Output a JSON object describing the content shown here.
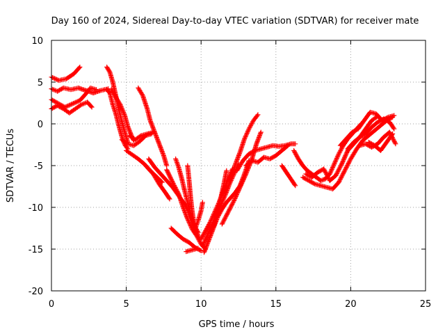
{
  "chart_data": {
    "type": "scatter",
    "title": "Day 160 of 2024, Sidereal Day-to-day VTEC variation (SDTVAR) for receiver mate",
    "xlabel": "GPS time / hours",
    "ylabel": "SDTVAR / TECUs",
    "xlim": [
      0,
      25
    ],
    "ylim": [
      -20,
      10
    ],
    "xticks": [
      0,
      5,
      10,
      15,
      20,
      25
    ],
    "yticks": [
      -20,
      -15,
      -10,
      -5,
      0,
      5,
      10
    ],
    "xtick_labels": [
      "0",
      "5",
      "10",
      "15",
      "20",
      "25"
    ],
    "ytick_labels": [
      "-20",
      "-15",
      "-10",
      "-5",
      "0",
      "5",
      "10"
    ],
    "grid": true,
    "marker": "+",
    "color": "#ff0000",
    "series": [
      {
        "points": [
          [
            0.0,
            5.6
          ],
          [
            0.5,
            5.2
          ],
          [
            1.0,
            5.4
          ],
          [
            1.5,
            6.0
          ],
          [
            1.9,
            6.8
          ]
        ]
      },
      {
        "points": [
          [
            0.0,
            4.2
          ],
          [
            0.4,
            3.9
          ],
          [
            0.8,
            4.3
          ],
          [
            1.3,
            4.1
          ],
          [
            1.8,
            4.3
          ],
          [
            2.3,
            4.0
          ],
          [
            2.8,
            3.7
          ],
          [
            3.3,
            4.0
          ],
          [
            3.8,
            4.2
          ]
        ]
      },
      {
        "points": [
          [
            0.0,
            2.9
          ],
          [
            0.4,
            2.5
          ],
          [
            0.9,
            2.0
          ],
          [
            1.4,
            2.4
          ],
          [
            1.9,
            2.8
          ],
          [
            2.3,
            3.6
          ],
          [
            2.6,
            4.3
          ],
          [
            3.0,
            4.1
          ]
        ]
      },
      {
        "points": [
          [
            0.0,
            1.8
          ],
          [
            0.4,
            2.2
          ],
          [
            0.8,
            1.8
          ],
          [
            1.2,
            1.3
          ],
          [
            1.6,
            1.8
          ],
          [
            2.0,
            2.3
          ],
          [
            2.4,
            2.6
          ],
          [
            2.7,
            2.0
          ]
        ]
      },
      {
        "points": [
          [
            3.7,
            4.1
          ],
          [
            3.9,
            3.7
          ],
          [
            4.1,
            2.3
          ],
          [
            4.3,
            1.2
          ],
          [
            4.5,
            -0.2
          ],
          [
            4.7,
            -1.5
          ],
          [
            4.9,
            -2.5
          ],
          [
            5.1,
            -3.0
          ]
        ]
      },
      {
        "points": [
          [
            3.7,
            6.8
          ],
          [
            3.9,
            6.2
          ],
          [
            4.1,
            5.0
          ],
          [
            4.3,
            3.4
          ],
          [
            4.5,
            1.7
          ],
          [
            4.7,
            0.3
          ],
          [
            4.9,
            -1.0
          ],
          [
            5.1,
            -2.2
          ]
        ]
      },
      {
        "points": [
          [
            4.0,
            4.1
          ],
          [
            4.3,
            3.2
          ],
          [
            4.6,
            2.3
          ],
          [
            4.9,
            1.0
          ],
          [
            5.1,
            -0.3
          ],
          [
            5.3,
            -1.2
          ],
          [
            5.5,
            -2.0
          ]
        ]
      },
      {
        "points": [
          [
            4.7,
            -1.9
          ],
          [
            5.1,
            -2.4
          ],
          [
            5.5,
            -2.6
          ],
          [
            5.9,
            -2.1
          ],
          [
            6.3,
            -1.4
          ],
          [
            6.7,
            -1.2
          ]
        ]
      },
      {
        "points": [
          [
            5.2,
            -1.4
          ],
          [
            5.6,
            -1.9
          ],
          [
            6.0,
            -1.4
          ],
          [
            6.4,
            -1.2
          ],
          [
            6.8,
            -1.0
          ]
        ]
      },
      {
        "points": [
          [
            5.0,
            -3.2
          ],
          [
            5.4,
            -3.7
          ],
          [
            5.8,
            -4.2
          ],
          [
            6.2,
            -4.8
          ],
          [
            6.6,
            -5.6
          ],
          [
            7.0,
            -6.3
          ],
          [
            7.4,
            -7.0
          ]
        ]
      },
      {
        "points": [
          [
            5.8,
            4.3
          ],
          [
            6.1,
            3.4
          ],
          [
            6.4,
            1.8
          ],
          [
            6.6,
            0.4
          ],
          [
            6.9,
            -1.0
          ],
          [
            7.2,
            -2.4
          ],
          [
            7.5,
            -3.8
          ],
          [
            7.7,
            -5.0
          ]
        ]
      },
      {
        "points": [
          [
            6.3,
            -5.0
          ],
          [
            6.8,
            -6.0
          ],
          [
            7.2,
            -7.2
          ],
          [
            7.6,
            -8.2
          ],
          [
            7.9,
            -9.0
          ]
        ]
      },
      {
        "points": [
          [
            6.5,
            -4.2
          ],
          [
            6.9,
            -5.2
          ],
          [
            7.3,
            -6.0
          ],
          [
            7.7,
            -6.8
          ],
          [
            8.1,
            -7.6
          ],
          [
            8.5,
            -8.6
          ],
          [
            8.9,
            -9.6
          ],
          [
            9.3,
            -11.0
          ],
          [
            9.6,
            -12.5
          ],
          [
            9.9,
            -13.8
          ]
        ]
      },
      {
        "points": [
          [
            7.7,
            -5.5
          ],
          [
            8.1,
            -7.0
          ],
          [
            8.5,
            -8.4
          ],
          [
            8.8,
            -10.0
          ],
          [
            9.1,
            -11.4
          ],
          [
            9.4,
            -12.6
          ],
          [
            9.7,
            -13.4
          ],
          [
            10.0,
            -14.4
          ],
          [
            10.3,
            -15.0
          ]
        ]
      },
      {
        "points": [
          [
            8.3,
            -4.2
          ],
          [
            8.5,
            -5.2
          ],
          [
            8.7,
            -6.5
          ],
          [
            8.9,
            -8.0
          ],
          [
            9.1,
            -9.4
          ],
          [
            9.3,
            -10.8
          ],
          [
            9.5,
            -12.0
          ],
          [
            9.8,
            -13.0
          ]
        ]
      },
      {
        "points": [
          [
            8.0,
            -12.5
          ],
          [
            8.4,
            -13.2
          ],
          [
            8.8,
            -13.8
          ],
          [
            9.2,
            -14.2
          ],
          [
            9.6,
            -14.8
          ],
          [
            10.0,
            -15.2
          ]
        ]
      },
      {
        "points": [
          [
            9.0,
            -15.3
          ],
          [
            9.4,
            -15.1
          ],
          [
            9.8,
            -14.9
          ]
        ]
      },
      {
        "points": [
          [
            9.1,
            -5.0
          ],
          [
            9.2,
            -6.8
          ],
          [
            9.3,
            -8.8
          ],
          [
            9.4,
            -10.4
          ],
          [
            9.5,
            -11.6
          ]
        ]
      },
      {
        "points": [
          [
            9.6,
            -12.6
          ],
          [
            9.8,
            -11.6
          ],
          [
            10.0,
            -10.4
          ],
          [
            10.1,
            -9.4
          ]
        ]
      },
      {
        "points": [
          [
            10.0,
            -13.8
          ],
          [
            10.3,
            -12.8
          ],
          [
            10.6,
            -11.8
          ],
          [
            10.9,
            -10.6
          ],
          [
            11.2,
            -9.4
          ],
          [
            11.5,
            -8.0
          ],
          [
            11.8,
            -6.6
          ],
          [
            12.1,
            -5.4
          ]
        ]
      },
      {
        "points": [
          [
            10.1,
            -14.6
          ],
          [
            10.4,
            -13.4
          ],
          [
            10.7,
            -12.2
          ],
          [
            11.0,
            -11.0
          ],
          [
            11.3,
            -9.8
          ],
          [
            11.6,
            -8.6
          ],
          [
            11.9,
            -7.2
          ],
          [
            12.2,
            -6.0
          ],
          [
            12.5,
            -4.8
          ]
        ]
      },
      {
        "points": [
          [
            10.2,
            -15.4
          ],
          [
            10.5,
            -14.0
          ],
          [
            10.8,
            -12.6
          ],
          [
            11.1,
            -11.2
          ],
          [
            11.4,
            -10.2
          ],
          [
            11.7,
            -9.4
          ],
          [
            12.0,
            -8.8
          ],
          [
            12.3,
            -8.2
          ],
          [
            12.6,
            -7.4
          ],
          [
            12.9,
            -6.0
          ],
          [
            13.2,
            -4.4
          ]
        ]
      },
      {
        "points": [
          [
            10.6,
            -13.0
          ],
          [
            10.9,
            -12.0
          ],
          [
            11.1,
            -10.4
          ],
          [
            11.3,
            -9.0
          ],
          [
            11.5,
            -7.4
          ],
          [
            11.7,
            -5.6
          ]
        ]
      },
      {
        "points": [
          [
            11.4,
            -12.0
          ],
          [
            11.8,
            -10.6
          ],
          [
            12.2,
            -9.2
          ],
          [
            12.6,
            -7.6
          ],
          [
            13.0,
            -6.0
          ],
          [
            13.4,
            -4.2
          ],
          [
            13.7,
            -2.4
          ],
          [
            14.0,
            -1.0
          ]
        ]
      },
      {
        "points": [
          [
            11.9,
            -6.8
          ],
          [
            12.3,
            -4.8
          ],
          [
            12.6,
            -3.4
          ],
          [
            12.9,
            -1.8
          ],
          [
            13.2,
            -0.6
          ],
          [
            13.5,
            0.4
          ],
          [
            13.8,
            1.1
          ]
        ]
      },
      {
        "points": [
          [
            12.4,
            -5.6
          ],
          [
            12.8,
            -4.4
          ],
          [
            13.2,
            -3.6
          ],
          [
            13.6,
            -3.2
          ],
          [
            14.0,
            -3.0
          ],
          [
            14.4,
            -2.8
          ],
          [
            14.8,
            -2.6
          ],
          [
            15.2,
            -2.7
          ],
          [
            15.6,
            -2.6
          ],
          [
            16.0,
            -2.4
          ],
          [
            16.3,
            -2.4
          ]
        ]
      },
      {
        "points": [
          [
            13.0,
            -5.0
          ],
          [
            13.4,
            -4.4
          ],
          [
            13.8,
            -4.6
          ],
          [
            14.2,
            -4.0
          ],
          [
            14.6,
            -4.2
          ],
          [
            15.0,
            -3.8
          ],
          [
            15.4,
            -3.2
          ],
          [
            15.8,
            -2.6
          ]
        ]
      },
      {
        "points": [
          [
            15.4,
            -5.0
          ],
          [
            15.7,
            -5.8
          ],
          [
            16.0,
            -6.6
          ],
          [
            16.3,
            -7.4
          ]
        ]
      },
      {
        "points": [
          [
            16.2,
            -3.2
          ],
          [
            16.5,
            -4.2
          ],
          [
            16.8,
            -5.0
          ],
          [
            17.1,
            -5.6
          ],
          [
            17.4,
            -6.0
          ],
          [
            17.7,
            -6.4
          ],
          [
            18.0,
            -6.8
          ],
          [
            18.3,
            -6.6
          ],
          [
            18.6,
            -6.0
          ],
          [
            18.9,
            -4.8
          ],
          [
            19.2,
            -3.6
          ],
          [
            19.5,
            -2.6
          ],
          [
            19.8,
            -1.8
          ],
          [
            20.1,
            -1.2
          ],
          [
            20.4,
            -0.6
          ],
          [
            20.7,
            0.0
          ]
        ]
      },
      {
        "points": [
          [
            17.0,
            -6.0
          ],
          [
            17.4,
            -6.4
          ],
          [
            17.8,
            -5.8
          ],
          [
            18.2,
            -5.4
          ],
          [
            18.6,
            -6.8
          ],
          [
            19.0,
            -6.2
          ],
          [
            19.4,
            -4.8
          ],
          [
            19.8,
            -3.2
          ],
          [
            20.2,
            -2.4
          ],
          [
            20.6,
            -1.6
          ],
          [
            21.0,
            -0.6
          ],
          [
            21.4,
            0.4
          ],
          [
            21.8,
            0.9
          ]
        ]
      },
      {
        "points": [
          [
            16.8,
            -6.4
          ],
          [
            17.2,
            -6.8
          ],
          [
            17.6,
            -7.2
          ],
          [
            18.0,
            -7.4
          ],
          [
            18.4,
            -7.6
          ],
          [
            18.8,
            -7.8
          ],
          [
            19.2,
            -7.0
          ],
          [
            19.6,
            -5.6
          ],
          [
            20.0,
            -4.2
          ],
          [
            20.4,
            -3.0
          ],
          [
            20.8,
            -2.0
          ],
          [
            21.2,
            -1.4
          ],
          [
            21.6,
            -0.8
          ],
          [
            22.0,
            -0.2
          ],
          [
            22.4,
            0.4
          ],
          [
            22.8,
            0.8
          ]
        ]
      },
      {
        "points": [
          [
            19.3,
            -2.6
          ],
          [
            19.7,
            -1.8
          ],
          [
            20.1,
            -1.0
          ],
          [
            20.5,
            -0.6
          ],
          [
            20.9,
            0.4
          ],
          [
            21.3,
            1.4
          ],
          [
            21.7,
            1.2
          ],
          [
            22.1,
            0.4
          ],
          [
            22.5,
            0.8
          ],
          [
            22.9,
            1.0
          ]
        ]
      },
      {
        "points": [
          [
            20.6,
            -2.6
          ],
          [
            21.0,
            -2.4
          ],
          [
            21.4,
            -2.8
          ],
          [
            21.8,
            -2.4
          ],
          [
            22.2,
            -1.6
          ],
          [
            22.6,
            -1.0
          ],
          [
            23.0,
            -2.4
          ]
        ]
      },
      {
        "points": [
          [
            19.8,
            -3.0
          ],
          [
            20.2,
            -2.2
          ],
          [
            20.6,
            -1.6
          ],
          [
            21.0,
            -1.2
          ],
          [
            21.4,
            -0.4
          ],
          [
            21.8,
            0.2
          ],
          [
            22.2,
            0.6
          ],
          [
            22.6,
            0.2
          ],
          [
            22.9,
            -0.6
          ]
        ]
      },
      {
        "points": [
          [
            21.2,
            -2.2
          ],
          [
            21.6,
            -2.6
          ],
          [
            22.0,
            -3.2
          ],
          [
            22.4,
            -2.2
          ],
          [
            22.8,
            -1.2
          ]
        ]
      }
    ]
  }
}
